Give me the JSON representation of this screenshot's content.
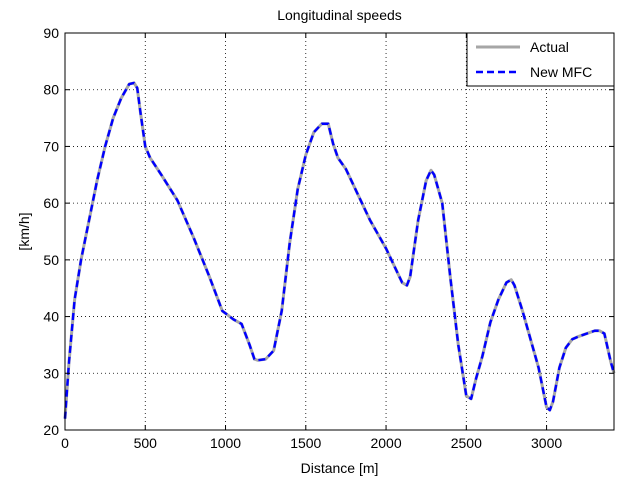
{
  "chart_data": {
    "type": "line",
    "title": "Longitudinal speeds",
    "xlabel": "Distance [m]",
    "ylabel": "[km/h]",
    "xlim": [
      0,
      3420
    ],
    "ylim": [
      20,
      90
    ],
    "xticks": [
      0,
      500,
      1000,
      1500,
      2000,
      2500,
      3000
    ],
    "yticks": [
      20,
      30,
      40,
      50,
      60,
      70,
      80,
      90
    ],
    "grid": true,
    "legend_position": "top-right",
    "series": [
      {
        "name": "Actual",
        "color": "#a6a6a6",
        "style": "solid",
        "x": [
          0,
          25,
          60,
          100,
          150,
          200,
          250,
          300,
          350,
          400,
          430,
          450,
          470,
          500,
          530,
          600,
          700,
          800,
          900,
          980,
          1050,
          1100,
          1150,
          1180,
          1200,
          1250,
          1300,
          1350,
          1400,
          1450,
          1500,
          1550,
          1600,
          1640,
          1670,
          1700,
          1750,
          1800,
          1850,
          1900,
          1950,
          2000,
          2050,
          2100,
          2130,
          2150,
          2180,
          2200,
          2250,
          2280,
          2300,
          2320,
          2350,
          2400,
          2450,
          2500,
          2530,
          2560,
          2600,
          2650,
          2700,
          2750,
          2780,
          2800,
          2850,
          2900,
          2950,
          3000,
          3020,
          3040,
          3080,
          3120,
          3160,
          3200,
          3250,
          3300,
          3330,
          3360,
          3400,
          3420
        ],
        "values": [
          22,
          32,
          43,
          50,
          57,
          64,
          70,
          75,
          78.5,
          81,
          81.2,
          80.3,
          76,
          70,
          68,
          65,
          60.5,
          54,
          47,
          41,
          39.5,
          38.7,
          35,
          32.5,
          32.3,
          32.5,
          34,
          41,
          53,
          62.5,
          68.5,
          72.5,
          74,
          74,
          70.5,
          68,
          66,
          63,
          60,
          57,
          54.5,
          52,
          49,
          46,
          45.5,
          47,
          53,
          57,
          64,
          65.8,
          65,
          63,
          60,
          47,
          35,
          26,
          25.5,
          29,
          33,
          39,
          43,
          46,
          46.5,
          45.5,
          41,
          36,
          31,
          24,
          23.5,
          25,
          31,
          34.5,
          36,
          36.5,
          37,
          37.5,
          37.5,
          37,
          32,
          30
        ]
      },
      {
        "name": "New MFC",
        "color": "#0000ff",
        "style": "dashed",
        "x": [
          0,
          25,
          60,
          100,
          150,
          200,
          250,
          300,
          350,
          400,
          430,
          450,
          470,
          500,
          530,
          600,
          700,
          800,
          900,
          980,
          1050,
          1100,
          1150,
          1180,
          1200,
          1250,
          1300,
          1350,
          1400,
          1450,
          1500,
          1550,
          1600,
          1640,
          1670,
          1700,
          1750,
          1800,
          1850,
          1900,
          1950,
          2000,
          2050,
          2100,
          2130,
          2150,
          2180,
          2200,
          2250,
          2280,
          2300,
          2320,
          2350,
          2400,
          2450,
          2500,
          2530,
          2560,
          2600,
          2650,
          2700,
          2750,
          2780,
          2800,
          2850,
          2900,
          2950,
          3000,
          3020,
          3040,
          3080,
          3120,
          3160,
          3200,
          3250,
          3300,
          3330,
          3360,
          3400,
          3420
        ],
        "values": [
          22,
          32,
          43,
          50,
          57,
          64,
          70,
          75,
          78.5,
          81,
          81.2,
          80.3,
          76,
          70,
          68,
          65,
          60.5,
          54,
          47,
          41,
          39.5,
          38.7,
          35,
          32.5,
          32.3,
          32.5,
          34,
          41,
          53,
          62.5,
          68.5,
          72.5,
          74,
          74,
          70.5,
          68,
          66,
          63,
          60,
          57,
          54.5,
          52,
          49,
          46,
          45.5,
          47,
          53,
          57,
          64,
          65.8,
          65,
          63,
          60,
          47,
          35,
          26,
          25.5,
          29,
          33,
          39,
          43,
          46,
          46.5,
          45.5,
          41,
          36,
          31,
          24,
          23.5,
          25,
          31,
          34.5,
          36,
          36.5,
          37,
          37.5,
          37.5,
          37,
          32,
          30
        ]
      }
    ]
  }
}
